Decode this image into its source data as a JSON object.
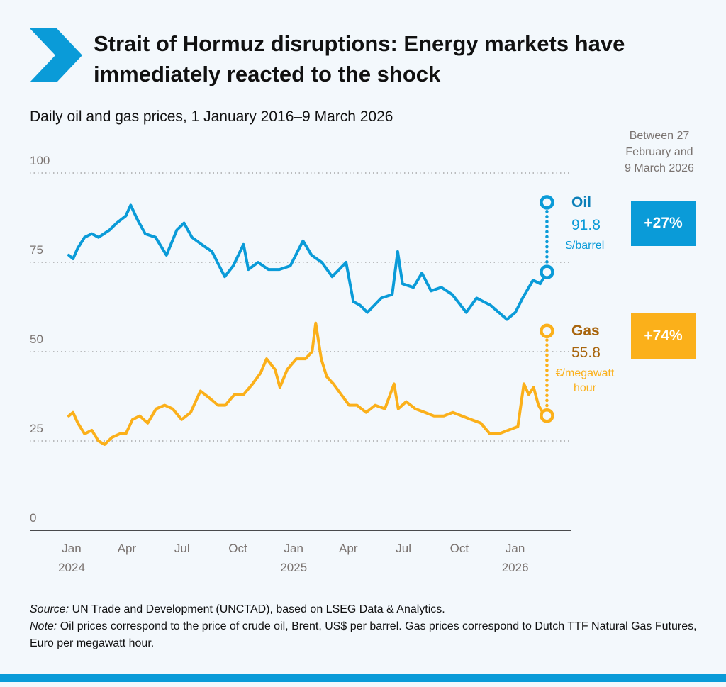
{
  "title": "Strait of Hormuz disruptions: Energy markets have immediately reacted to the shock",
  "subtitle": "Daily oil and gas prices, 1 January 2016–9 March 2026",
  "period_label": "Between 27 February and 9 March 2026",
  "colors": {
    "oil": "#0a9bd8",
    "gas": "#fbb01a",
    "gas_text": "#a8650e",
    "grid": "#9a9a9a",
    "axis_text": "#7a7370"
  },
  "legend": {
    "oil": {
      "name": "Oil",
      "value": "91.8",
      "unit": "$/barrel",
      "change": "+27%"
    },
    "gas": {
      "name": "Gas",
      "value": "55.8",
      "unit_line1": "€/megawatt",
      "unit_line2": "hour",
      "change": "+74%"
    }
  },
  "footer": {
    "source_label": "Source:",
    "source_text": " UN Trade and Development (UNCTAD), based on LSEG Data & Analytics.",
    "note_label": "Note:",
    "note_text": " Oil prices correspond to the price of crude oil, Brent, US$ per barrel. Gas prices correspond to Dutch TTF Natural Gas Futures, Euro per megawatt hour."
  },
  "chart_data": {
    "type": "line",
    "xlim": [
      "2024-01-01",
      "2026-03-09"
    ],
    "ylim": [
      0,
      100
    ],
    "yticks": [
      "0",
      "25",
      "50",
      "75",
      "100"
    ],
    "xticks": [
      {
        "date": "2024-01-01",
        "l1": "Jan",
        "l2": "2024"
      },
      {
        "date": "2024-04-01",
        "l1": "Apr",
        "l2": ""
      },
      {
        "date": "2024-07-01",
        "l1": "Jul",
        "l2": ""
      },
      {
        "date": "2024-10-01",
        "l1": "Oct",
        "l2": ""
      },
      {
        "date": "2025-01-01",
        "l1": "Jan",
        "l2": "2025"
      },
      {
        "date": "2025-04-01",
        "l1": "Apr",
        "l2": ""
      },
      {
        "date": "2025-07-01",
        "l1": "Jul",
        "l2": ""
      },
      {
        "date": "2025-10-01",
        "l1": "Oct",
        "l2": ""
      },
      {
        "date": "2026-01-01",
        "l1": "Jan",
        "l2": "2026"
      }
    ],
    "grid": "dotted horizontal",
    "series": [
      {
        "name": "Oil",
        "color": "#0a9bd8",
        "points": [
          [
            "2024-01-01",
            77
          ],
          [
            "2024-01-08",
            76
          ],
          [
            "2024-01-16",
            79
          ],
          [
            "2024-01-27",
            82
          ],
          [
            "2024-02-08",
            83
          ],
          [
            "2024-02-19",
            82
          ],
          [
            "2024-03-08",
            84
          ],
          [
            "2024-03-20",
            86
          ],
          [
            "2024-04-04",
            88
          ],
          [
            "2024-04-12",
            91
          ],
          [
            "2024-04-23",
            87
          ],
          [
            "2024-05-06",
            83
          ],
          [
            "2024-05-23",
            82
          ],
          [
            "2024-06-10",
            77
          ],
          [
            "2024-06-27",
            84
          ],
          [
            "2024-07-09",
            86
          ],
          [
            "2024-07-22",
            82
          ],
          [
            "2024-08-07",
            80
          ],
          [
            "2024-08-24",
            78
          ],
          [
            "2024-09-14",
            71
          ],
          [
            "2024-09-28",
            74
          ],
          [
            "2024-10-15",
            80
          ],
          [
            "2024-10-23",
            73
          ],
          [
            "2024-11-08",
            75
          ],
          [
            "2024-11-25",
            73
          ],
          [
            "2024-12-13",
            73
          ],
          [
            "2024-12-31",
            74
          ],
          [
            "2025-01-21",
            81
          ],
          [
            "2025-02-04",
            77
          ],
          [
            "2025-02-21",
            75
          ],
          [
            "2025-03-10",
            71
          ],
          [
            "2025-04-02",
            75
          ],
          [
            "2025-04-14",
            64
          ],
          [
            "2025-04-25",
            63
          ],
          [
            "2025-05-07",
            61
          ],
          [
            "2025-05-30",
            65
          ],
          [
            "2025-06-17",
            66
          ],
          [
            "2025-06-26",
            78
          ],
          [
            "2025-07-04",
            69
          ],
          [
            "2025-07-22",
            68
          ],
          [
            "2025-08-05",
            72
          ],
          [
            "2025-08-20",
            67
          ],
          [
            "2025-09-06",
            68
          ],
          [
            "2025-09-24",
            66
          ],
          [
            "2025-10-17",
            61
          ],
          [
            "2025-11-03",
            65
          ],
          [
            "2025-11-26",
            63
          ],
          [
            "2025-12-23",
            59
          ],
          [
            "2026-01-06",
            61
          ],
          [
            "2026-01-18",
            65
          ],
          [
            "2026-02-04",
            70
          ],
          [
            "2026-02-16",
            69
          ],
          [
            "2026-02-27",
            72.3
          ]
        ],
        "latest": [
          "2026-03-09",
          91.8
        ]
      },
      {
        "name": "Gas",
        "color": "#fbb01a",
        "points": [
          [
            "2024-01-01",
            32
          ],
          [
            "2024-01-08",
            33
          ],
          [
            "2024-01-16",
            30
          ],
          [
            "2024-01-27",
            27
          ],
          [
            "2024-02-08",
            28
          ],
          [
            "2024-02-19",
            25
          ],
          [
            "2024-02-29",
            24
          ],
          [
            "2024-03-12",
            26
          ],
          [
            "2024-03-25",
            27
          ],
          [
            "2024-04-04",
            27
          ],
          [
            "2024-04-15",
            31
          ],
          [
            "2024-04-27",
            32
          ],
          [
            "2024-05-10",
            30
          ],
          [
            "2024-05-24",
            34
          ],
          [
            "2024-06-07",
            35
          ],
          [
            "2024-06-20",
            34
          ],
          [
            "2024-07-05",
            31
          ],
          [
            "2024-07-20",
            33
          ],
          [
            "2024-08-05",
            39
          ],
          [
            "2024-08-20",
            37
          ],
          [
            "2024-09-03",
            35
          ],
          [
            "2024-09-15",
            35
          ],
          [
            "2024-09-30",
            38
          ],
          [
            "2024-10-15",
            38
          ],
          [
            "2024-10-30",
            41
          ],
          [
            "2024-11-12",
            44
          ],
          [
            "2024-11-22",
            48
          ],
          [
            "2024-12-06",
            45
          ],
          [
            "2024-12-14",
            40
          ],
          [
            "2024-12-26",
            45
          ],
          [
            "2025-01-10",
            48
          ],
          [
            "2025-01-25",
            48
          ],
          [
            "2025-02-05",
            50
          ],
          [
            "2025-02-11",
            58
          ],
          [
            "2025-02-20",
            48
          ],
          [
            "2025-03-01",
            43
          ],
          [
            "2025-03-12",
            41
          ],
          [
            "2025-03-25",
            38
          ],
          [
            "2025-04-07",
            35
          ],
          [
            "2025-04-20",
            35
          ],
          [
            "2025-05-05",
            33
          ],
          [
            "2025-05-20",
            35
          ],
          [
            "2025-06-05",
            34
          ],
          [
            "2025-06-20",
            41
          ],
          [
            "2025-06-27",
            34
          ],
          [
            "2025-07-10",
            36
          ],
          [
            "2025-07-25",
            34
          ],
          [
            "2025-08-10",
            33
          ],
          [
            "2025-08-25",
            32
          ],
          [
            "2025-09-10",
            32
          ],
          [
            "2025-09-25",
            33
          ],
          [
            "2025-10-10",
            32
          ],
          [
            "2025-10-25",
            31
          ],
          [
            "2025-11-10",
            30
          ],
          [
            "2025-11-25",
            27
          ],
          [
            "2025-12-10",
            27
          ],
          [
            "2025-12-25",
            28
          ],
          [
            "2026-01-10",
            29
          ],
          [
            "2026-01-20",
            41
          ],
          [
            "2026-01-28",
            38
          ],
          [
            "2026-02-05",
            40
          ],
          [
            "2026-02-13",
            35
          ],
          [
            "2026-02-20",
            33
          ],
          [
            "2026-02-27",
            32.1
          ]
        ],
        "latest": [
          "2026-03-09",
          55.8
        ]
      }
    ]
  }
}
